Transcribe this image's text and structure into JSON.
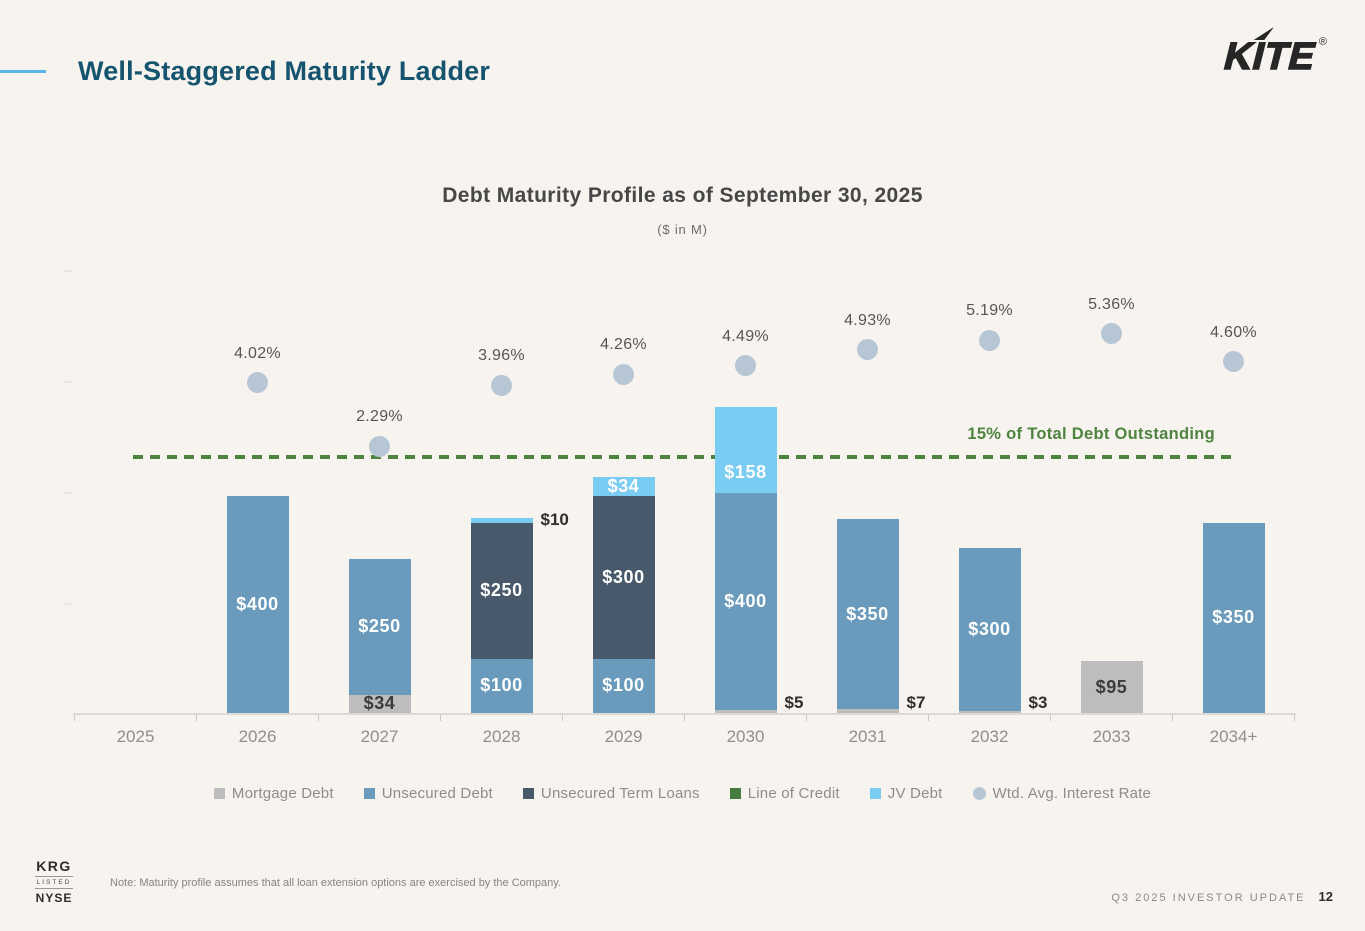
{
  "header": {
    "title": "Well-Staggered Maturity Ladder",
    "logo": {
      "letters": [
        "K",
        "I",
        "T",
        "E"
      ],
      "registered_mark": "®",
      "name": "kite-logo"
    }
  },
  "chart_data": {
    "type": "bar",
    "stacked": true,
    "title": "Debt Maturity Profile as of September 30, 2025",
    "subtitle": "($ in M)",
    "value_prefix": "$",
    "categories": [
      "2025",
      "2026",
      "2027",
      "2028",
      "2029",
      "2030",
      "2031",
      "2032",
      "2033",
      "2034+"
    ],
    "series": [
      {
        "name": "Mortgage Debt",
        "color": "#bdbdbd",
        "label_text_color": "#3b3b3b",
        "values": [
          0,
          0,
          34,
          0,
          0,
          5,
          7,
          3,
          95,
          0
        ]
      },
      {
        "name": "Unsecured Debt",
        "color": "#6a9bbd",
        "label_text_color": "#ffffff",
        "values": [
          0,
          400,
          250,
          100,
          100,
          400,
          350,
          300,
          0,
          350
        ]
      },
      {
        "name": "Unsecured Term Loans",
        "color": "#47596b",
        "label_text_color": "#ffffff",
        "values": [
          0,
          0,
          0,
          250,
          300,
          0,
          0,
          0,
          0,
          0
        ]
      },
      {
        "name": "Line of Credit",
        "color": "#447c40",
        "label_text_color": "#ffffff",
        "values": [
          0,
          0,
          0,
          0,
          0,
          0,
          0,
          0,
          0,
          0
        ]
      },
      {
        "name": "JV Debt",
        "color": "#7accf2",
        "label_text_color": "#ffffff",
        "values": [
          0,
          0,
          0,
          10,
          34,
          158,
          0,
          0,
          0,
          0
        ]
      }
    ],
    "dot_series": {
      "name": "Wtd. Avg. Interest Rate",
      "color": "#b6c6d4",
      "values": [
        null,
        4.02,
        2.29,
        3.96,
        4.26,
        4.49,
        4.93,
        5.19,
        5.36,
        4.6
      ],
      "label_suffix": "%"
    },
    "threshold": {
      "label": "15% of Total Debt Outstanding",
      "percent_of_total": 15,
      "color": "#4e8440"
    },
    "grid": false,
    "legend_position": "bottom"
  },
  "legend": {
    "items": [
      {
        "label": "Mortgage Debt",
        "color": "#bdbdbd",
        "shape": "square"
      },
      {
        "label": "Unsecured Debt",
        "color": "#6a9bbd",
        "shape": "square"
      },
      {
        "label": "Unsecured Term Loans",
        "color": "#47596b",
        "shape": "square"
      },
      {
        "label": "Line of Credit",
        "color": "#447c40",
        "shape": "square"
      },
      {
        "label": "JV Debt",
        "color": "#7accf2",
        "shape": "square"
      },
      {
        "label": "Wtd. Avg. Interest Rate",
        "color": "#b6c6d4",
        "shape": "circle"
      }
    ]
  },
  "footer": {
    "stock": {
      "ticker": "KRG",
      "listed": "LISTED",
      "exchange": "NYSE"
    },
    "note": "Note: Maturity profile assumes that all loan extension options are exercised by the Company.",
    "update_label": "Q3 2025 INVESTOR UPDATE",
    "page_number": "12"
  }
}
